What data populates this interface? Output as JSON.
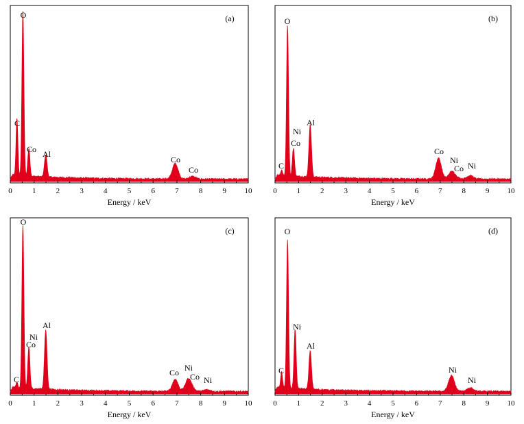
{
  "figure_background": "#ffffff",
  "spectrum_color": "#e0001b",
  "chart_data": [
    {
      "type": "line",
      "panel_label": "(a)",
      "xlabel": "Energy / keV",
      "ylabel": "",
      "xlim": [
        0,
        10
      ],
      "ylim": [
        0,
        100
      ],
      "grid": false,
      "xticks": [
        "0",
        "1",
        "2",
        "3",
        "4",
        "5",
        "6",
        "7",
        "8",
        "9",
        "10"
      ],
      "peaks": [
        {
          "label": "C",
          "energy": 0.28,
          "intensity": 33
        },
        {
          "label": "O",
          "energy": 0.53,
          "intensity": 95
        },
        {
          "label": "Co",
          "energy": 0.78,
          "intensity": 16
        },
        {
          "label": "Al",
          "energy": 1.49,
          "intensity": 13
        },
        {
          "label": "Co",
          "energy": 6.93,
          "intensity": 9
        },
        {
          "label": "Co",
          "energy": 7.65,
          "intensity": 1.5
        }
      ]
    },
    {
      "type": "line",
      "panel_label": "(b)",
      "xlabel": "Energy / keV",
      "ylabel": "",
      "xlim": [
        0,
        10
      ],
      "ylim": [
        0,
        100
      ],
      "grid": false,
      "xticks": [
        "0",
        "1",
        "2",
        "3",
        "4",
        "5",
        "6",
        "7",
        "8",
        "9",
        "10"
      ],
      "peaks": [
        {
          "label": "C",
          "energy": 0.28,
          "intensity": 3
        },
        {
          "label": "O",
          "energy": 0.53,
          "intensity": 87
        },
        {
          "label": "Ni",
          "energy": 0.85,
          "intensity": 0
        },
        {
          "label": "Co",
          "energy": 0.78,
          "intensity": 16
        },
        {
          "label": "Al",
          "energy": 1.49,
          "intensity": 30
        },
        {
          "label": "Co",
          "energy": 6.93,
          "intensity": 12
        },
        {
          "label": "Ni",
          "energy": 7.48,
          "intensity": 4
        },
        {
          "label": "Co",
          "energy": 7.65,
          "intensity": 1
        },
        {
          "label": "Ni",
          "energy": 8.26,
          "intensity": 2
        }
      ]
    },
    {
      "type": "line",
      "panel_label": "(c)",
      "xlabel": "Energy / keV",
      "ylabel": "",
      "xlim": [
        0,
        10
      ],
      "ylim": [
        0,
        100
      ],
      "grid": false,
      "xticks": [
        "0",
        "1",
        "2",
        "3",
        "4",
        "5",
        "6",
        "7",
        "8",
        "9",
        "10"
      ],
      "peaks": [
        {
          "label": "C",
          "energy": 0.28,
          "intensity": 3
        },
        {
          "label": "O",
          "energy": 0.53,
          "intensity": 94
        },
        {
          "label": "Ni",
          "energy": 0.85,
          "intensity": 0
        },
        {
          "label": "Co",
          "energy": 0.78,
          "intensity": 24
        },
        {
          "label": "Al",
          "energy": 1.49,
          "intensity": 34
        },
        {
          "label": "Co",
          "energy": 6.93,
          "intensity": 7
        },
        {
          "label": "Ni",
          "energy": 7.48,
          "intensity": 7
        },
        {
          "label": "Co",
          "energy": 7.65,
          "intensity": 1
        },
        {
          "label": "Ni",
          "energy": 8.26,
          "intensity": 1
        }
      ]
    },
    {
      "type": "line",
      "panel_label": "(d)",
      "xlabel": "Energy / keV",
      "ylabel": "",
      "xlim": [
        0,
        10
      ],
      "ylim": [
        0,
        100
      ],
      "grid": false,
      "xticks": [
        "0",
        "1",
        "2",
        "3",
        "4",
        "5",
        "6",
        "7",
        "8",
        "9",
        "10"
      ],
      "peaks": [
        {
          "label": "C",
          "energy": 0.28,
          "intensity": 9
        },
        {
          "label": "O",
          "energy": 0.53,
          "intensity": 86
        },
        {
          "label": "Ni",
          "energy": 0.85,
          "intensity": 34
        },
        {
          "label": "Al",
          "energy": 1.49,
          "intensity": 22
        },
        {
          "label": "Ni",
          "energy": 7.48,
          "intensity": 9
        },
        {
          "label": "Ni",
          "energy": 8.26,
          "intensity": 2
        }
      ]
    }
  ]
}
